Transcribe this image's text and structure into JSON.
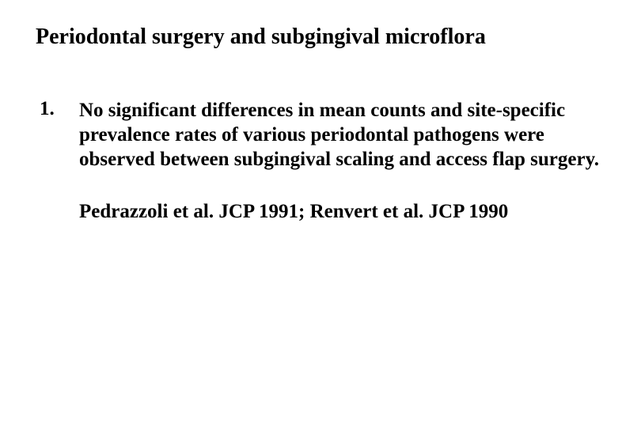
{
  "title": "Periodontal surgery and subgingival microflora",
  "list": {
    "items": [
      {
        "number": "1.",
        "text": "No significant differences in mean counts and site-specific prevalence rates of various periodontal pathogens were observed between subgingival scaling and access flap surgery."
      }
    ]
  },
  "citation": "Pedrazzoli et al. JCP 1991; Renvert et al. JCP 1990",
  "colors": {
    "background": "#ffffff",
    "text": "#000000"
  },
  "typography": {
    "font_family": "Times New Roman",
    "title_fontsize": 28,
    "body_fontsize": 25,
    "font_weight": "bold"
  }
}
